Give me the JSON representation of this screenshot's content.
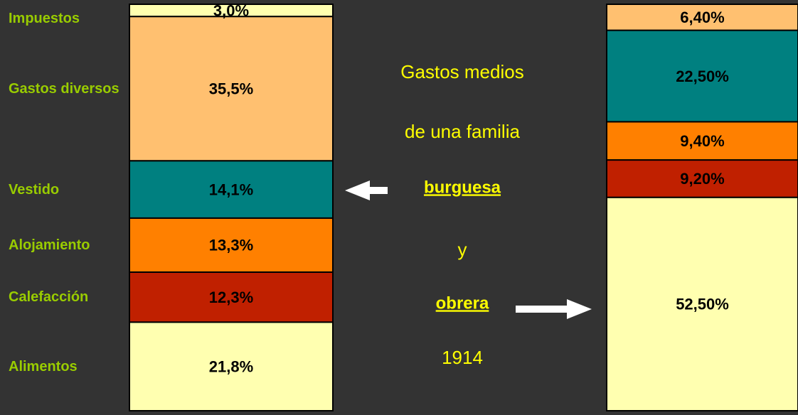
{
  "chart_data": {
    "type": "stacked_bar",
    "categories": [
      "burguesa",
      "obrera"
    ],
    "annotations": [
      "Gastos medios",
      "de una familia",
      "y",
      "1914"
    ],
    "ylim": [
      0,
      100
    ],
    "series": [
      {
        "name": "Alimentos",
        "color": "#ffffb0",
        "values": [
          21.8,
          52.5
        ],
        "value_labels": [
          "21,8%",
          "52,50%"
        ]
      },
      {
        "name": "Calefacción",
        "color": "#c02000",
        "values": [
          12.3,
          9.2
        ],
        "value_labels": [
          "12,3%",
          "9,20%"
        ]
      },
      {
        "name": "Alojamiento",
        "color": "#ff8000",
        "values": [
          13.3,
          9.4
        ],
        "value_labels": [
          "13,3%",
          "9,40%"
        ]
      },
      {
        "name": "Vestido",
        "color": "#008080",
        "values": [
          14.1,
          22.5
        ],
        "value_labels": [
          "14,1%",
          "22,50%"
        ]
      },
      {
        "name": "Gastos diversos",
        "color": "#ffc070",
        "values": [
          35.5,
          6.4
        ],
        "value_labels": [
          "35,5%",
          "6,40%"
        ]
      },
      {
        "name": "Impuestos",
        "color": "#ffffb0",
        "values": [
          3.0,
          null
        ],
        "value_labels": [
          "3,0%",
          null
        ]
      }
    ]
  }
}
